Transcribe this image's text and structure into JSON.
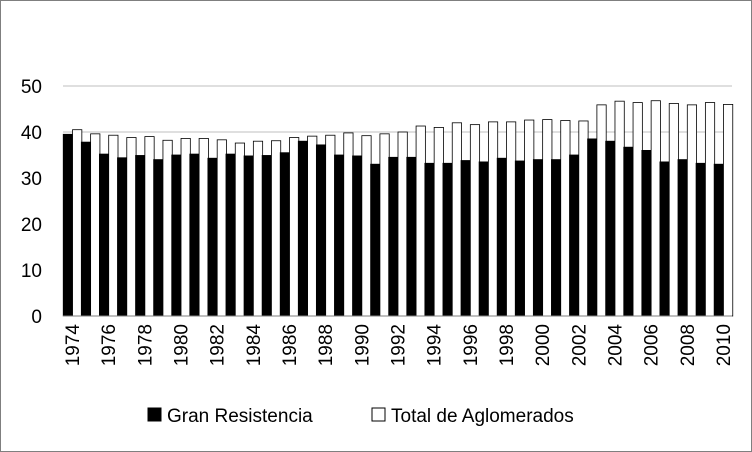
{
  "chart_data": {
    "type": "bar",
    "title": "",
    "xlabel": "",
    "ylabel": "",
    "ylim": [
      0,
      50
    ],
    "yticks": [
      0,
      10,
      20,
      30,
      40,
      50
    ],
    "grid": true,
    "legend_position": "bottom",
    "x": [
      1974,
      1975,
      1976,
      1977,
      1978,
      1979,
      1980,
      1981,
      1982,
      1983,
      1984,
      1985,
      1986,
      1987,
      1988,
      1989,
      1990,
      1991,
      1992,
      1993,
      1994,
      1995,
      1996,
      1997,
      1998,
      1999,
      2000,
      2001,
      2002,
      2003,
      2004,
      2005,
      2006,
      2007,
      2008,
      2009,
      2010
    ],
    "xtick_labels": [
      "1974",
      "1976",
      "1978",
      "1980",
      "1982",
      "1984",
      "1986",
      "1988",
      "1990",
      "1992",
      "1994",
      "1996",
      "1998",
      "2000",
      "2002",
      "2004",
      "2006",
      "2008",
      "2010"
    ],
    "series": [
      {
        "name": "Gran Resistencia",
        "color": "#000000",
        "values": [
          39.5,
          37.8,
          35.2,
          34.4,
          34.9,
          34.0,
          35.0,
          35.2,
          34.3,
          35.2,
          34.8,
          34.9,
          35.5,
          38.0,
          37.2,
          35.0,
          34.8,
          33.0,
          34.5,
          34.5,
          33.2,
          33.2,
          33.8,
          33.5,
          34.3,
          33.7,
          34.0,
          34.0,
          35.0,
          38.5,
          38.0,
          36.7,
          36.0,
          33.5,
          34.0,
          33.2,
          33.0
        ]
      },
      {
        "name": "Total de Aglomerados",
        "color": "#ffffff",
        "values": [
          40.5,
          39.6,
          39.3,
          38.8,
          39.0,
          38.2,
          38.6,
          38.6,
          38.3,
          37.6,
          38.0,
          38.1,
          38.8,
          39.1,
          39.3,
          39.8,
          39.2,
          39.6,
          40.0,
          41.3,
          41.0,
          42.0,
          41.6,
          42.2,
          42.2,
          42.6,
          42.7,
          42.5,
          42.4,
          45.9,
          46.7,
          46.4,
          46.8,
          46.2,
          45.9,
          46.4,
          46.0
        ]
      }
    ]
  }
}
